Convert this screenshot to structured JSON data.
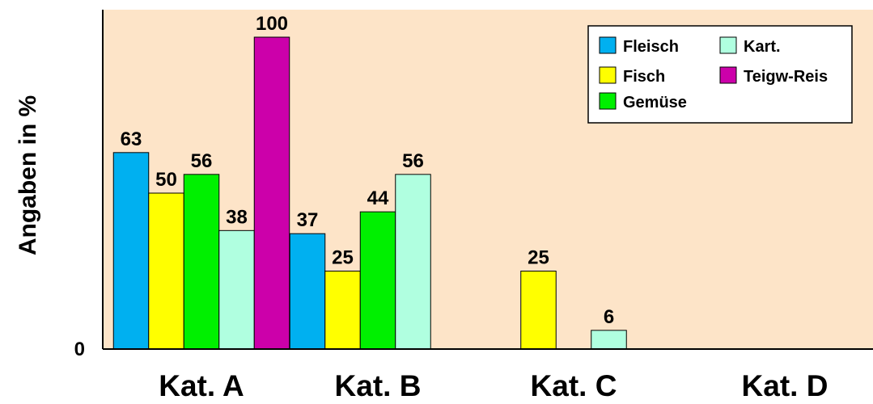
{
  "chart_data": {
    "type": "bar",
    "categories": [
      "Kat. A",
      "Kat. B",
      "Kat. C",
      "Kat. D"
    ],
    "series": [
      {
        "name": "Fleisch",
        "color": "#00b0f0",
        "values": [
          63,
          37,
          null,
          null
        ]
      },
      {
        "name": "Fisch",
        "color": "#ffff00",
        "values": [
          50,
          25,
          25,
          null
        ]
      },
      {
        "name": "Gemüse",
        "color": "#00f000",
        "values": [
          56,
          44,
          null,
          null
        ]
      },
      {
        "name": "Kart.",
        "color": "#b0ffe0",
        "values": [
          38,
          56,
          6,
          null
        ]
      },
      {
        "name": "Teigw-Reis",
        "color": "#cc00aa",
        "values": [
          100,
          null,
          null,
          null
        ]
      }
    ],
    "ylabel": "Angaben in %",
    "y_tick_labels": [
      "0"
    ],
    "ylim": [
      0,
      100
    ],
    "legend_position": "top-right",
    "plot_background": "#fde4c8",
    "grid": false
  }
}
